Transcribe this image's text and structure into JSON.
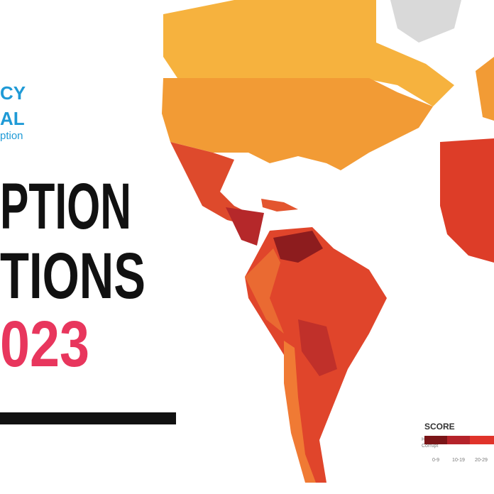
{
  "logo": {
    "line1": "CY",
    "line2": "AL",
    "line3": "ption"
  },
  "headline": {
    "line1": "PTION",
    "line2": "TIONS",
    "line3": "023"
  },
  "legend": {
    "title": "SCORE",
    "low_label_1": "Highly",
    "low_label_2": "Corrupt",
    "bins": [
      "0-9",
      "10-19",
      "20-29"
    ]
  }
}
